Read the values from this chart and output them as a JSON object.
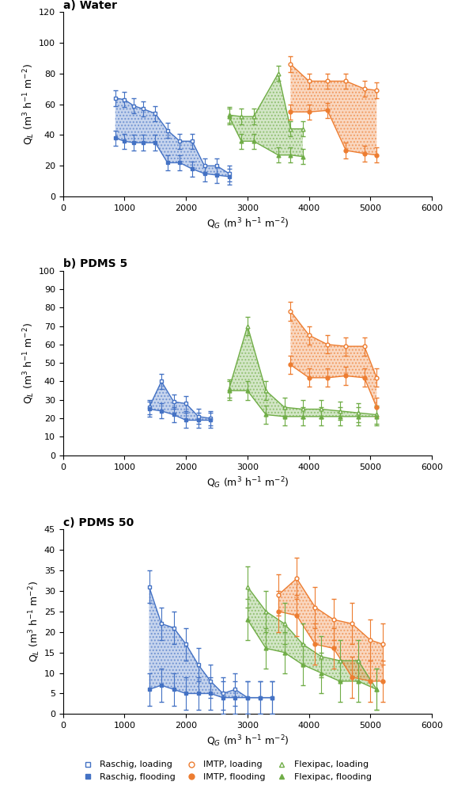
{
  "raschig_color": "#4472C4",
  "imtp_color": "#ED7D31",
  "flexipac_color": "#70AD47",
  "fill_alpha": 0.3,
  "hatch_alpha": 0.15,
  "ylabel": "Q$_L$ (m$^3$ h$^{-1}$ m$^{-2}$)",
  "xlabel": "Q$_G$ (m$^3$ h$^{-1}$ m$^{-2}$)",
  "water": {
    "title": "a) Water",
    "ylim": [
      0,
      120
    ],
    "yticks": [
      0,
      20,
      40,
      60,
      80,
      100,
      120
    ],
    "raschig_load_x": [
      850,
      1000,
      1150,
      1300,
      1500,
      1700,
      1900,
      2100,
      2300,
      2500,
      2700
    ],
    "raschig_load_y": [
      64,
      63,
      59,
      57,
      54,
      43,
      36,
      36,
      20,
      20,
      15
    ],
    "raschig_load_ye": [
      5,
      5,
      5,
      5,
      5,
      5,
      5,
      5,
      5,
      5,
      5
    ],
    "raschig_flood_x": [
      850,
      1000,
      1150,
      1300,
      1500,
      1700,
      1900,
      2100,
      2300,
      2500,
      2700
    ],
    "raschig_flood_y": [
      38,
      36,
      35,
      35,
      35,
      22,
      22,
      18,
      15,
      14,
      13
    ],
    "raschig_flood_ye": [
      5,
      5,
      5,
      5,
      5,
      5,
      5,
      5,
      5,
      5,
      5
    ],
    "imtp_load_x": [
      3700,
      4000,
      4300,
      4600,
      4900,
      5100
    ],
    "imtp_load_y": [
      86,
      75,
      75,
      75,
      70,
      69
    ],
    "imtp_load_ye": [
      5,
      5,
      5,
      5,
      5,
      5
    ],
    "imtp_flood_x": [
      3700,
      4000,
      4300,
      4600,
      4900,
      5100
    ],
    "imtp_flood_y": [
      55,
      55,
      56,
      30,
      28,
      27
    ],
    "imtp_flood_ye": [
      5,
      5,
      5,
      5,
      5,
      5
    ],
    "flex_load_x": [
      2700,
      2900,
      3100,
      3500,
      3700,
      3900
    ],
    "flex_load_y": [
      53,
      52,
      52,
      80,
      44,
      44
    ],
    "flex_load_ye": [
      5,
      5,
      5,
      5,
      5,
      5
    ],
    "flex_flood_x": [
      2700,
      2900,
      3100,
      3500,
      3700,
      3900
    ],
    "flex_flood_y": [
      52,
      36,
      36,
      27,
      27,
      26
    ],
    "flex_flood_ye": [
      5,
      5,
      5,
      5,
      5,
      5
    ]
  },
  "pdms5": {
    "title": "b) PDMS 5",
    "ylim": [
      0,
      100
    ],
    "yticks": [
      0,
      10,
      20,
      30,
      40,
      50,
      60,
      70,
      80,
      90,
      100
    ],
    "raschig_load_x": [
      1400,
      1600,
      1800,
      2000,
      2200,
      2400
    ],
    "raschig_load_y": [
      26,
      40,
      29,
      28,
      21,
      20
    ],
    "raschig_load_ye": [
      4,
      4,
      4,
      4,
      4,
      4
    ],
    "raschig_flood_x": [
      1400,
      1600,
      1800,
      2000,
      2200,
      2400
    ],
    "raschig_flood_y": [
      25,
      24,
      22,
      19,
      19,
      19
    ],
    "raschig_flood_ye": [
      4,
      4,
      4,
      4,
      4,
      4
    ],
    "imtp_load_x": [
      3700,
      4000,
      4300,
      4600,
      4900,
      5100
    ],
    "imtp_load_y": [
      78,
      65,
      60,
      59,
      59,
      42
    ],
    "imtp_load_ye": [
      5,
      5,
      5,
      5,
      5,
      5
    ],
    "imtp_flood_x": [
      3700,
      4000,
      4300,
      4600,
      4900,
      5100
    ],
    "imtp_flood_y": [
      49,
      42,
      42,
      43,
      42,
      26
    ],
    "imtp_flood_ye": [
      5,
      5,
      5,
      5,
      5,
      5
    ],
    "flex_load_x": [
      2700,
      3000,
      3300,
      3600,
      3900,
      4200,
      4500,
      4800,
      5100
    ],
    "flex_load_y": [
      36,
      70,
      35,
      26,
      25,
      25,
      24,
      23,
      22
    ],
    "flex_load_ye": [
      5,
      5,
      5,
      5,
      5,
      5,
      5,
      5,
      5
    ],
    "flex_flood_x": [
      2700,
      3000,
      3300,
      3600,
      3900,
      4200,
      4500,
      4800,
      5100
    ],
    "flex_flood_y": [
      35,
      35,
      22,
      21,
      21,
      21,
      21,
      21,
      21
    ],
    "flex_flood_ye": [
      5,
      5,
      5,
      5,
      5,
      5,
      5,
      5,
      5
    ]
  },
  "pdms50": {
    "title": "c) PDMS 50",
    "ylim": [
      0,
      45
    ],
    "yticks": [
      0,
      5,
      10,
      15,
      20,
      25,
      30,
      35,
      40,
      45
    ],
    "raschig_load_x": [
      1400,
      1600,
      1800,
      2000,
      2200,
      2400,
      2600,
      2800,
      3000,
      3200,
      3400
    ],
    "raschig_load_y": [
      31,
      22,
      21,
      17,
      12,
      8,
      5,
      6,
      4,
      4,
      4
    ],
    "raschig_load_ye": [
      4,
      4,
      4,
      4,
      4,
      4,
      4,
      4,
      4,
      4,
      4
    ],
    "raschig_flood_x": [
      1400,
      1600,
      1800,
      2000,
      2200,
      2400,
      2600,
      2800,
      3000,
      3200,
      3400
    ],
    "raschig_flood_y": [
      6,
      7,
      6,
      5,
      5,
      5,
      4,
      4,
      4,
      4,
      4
    ],
    "raschig_flood_ye": [
      4,
      4,
      4,
      4,
      4,
      4,
      4,
      4,
      4,
      4,
      4
    ],
    "imtp_load_x": [
      3500,
      3800,
      4100,
      4400,
      4700,
      5000,
      5200
    ],
    "imtp_load_y": [
      29,
      33,
      26,
      23,
      22,
      18,
      17
    ],
    "imtp_load_ye": [
      5,
      5,
      5,
      5,
      5,
      5,
      5
    ],
    "imtp_flood_x": [
      3500,
      3800,
      4100,
      4400,
      4700,
      5000,
      5200
    ],
    "imtp_flood_y": [
      25,
      24,
      17,
      16,
      9,
      8,
      8
    ],
    "imtp_flood_ye": [
      5,
      5,
      5,
      5,
      5,
      5,
      5
    ],
    "flex_load_x": [
      3000,
      3300,
      3600,
      3900,
      4200,
      4500,
      4800,
      5100
    ],
    "flex_load_y": [
      31,
      25,
      22,
      17,
      14,
      13,
      13,
      6
    ],
    "flex_load_ye": [
      5,
      5,
      5,
      5,
      5,
      5,
      5,
      5
    ],
    "flex_flood_x": [
      3000,
      3300,
      3600,
      3900,
      4200,
      4500,
      4800,
      5100
    ],
    "flex_flood_y": [
      23,
      16,
      15,
      12,
      10,
      8,
      8,
      6
    ],
    "flex_flood_ye": [
      5,
      5,
      5,
      5,
      5,
      5,
      5,
      5
    ]
  }
}
